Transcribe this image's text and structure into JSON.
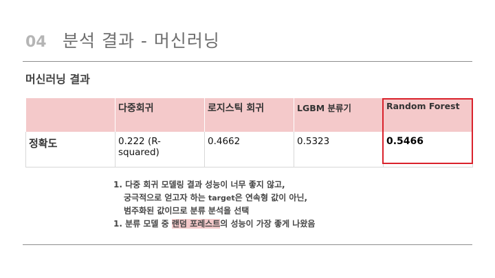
{
  "header": {
    "number": "04",
    "title": "분석 결과 - 머신러닝"
  },
  "section": {
    "title": "머신러닝 결과"
  },
  "table": {
    "columns": [
      "",
      "다중회귀",
      "로지스틱 회귀",
      "LGBM 분류기",
      "Random Forest"
    ],
    "rows": [
      {
        "label": "정확도",
        "values": [
          "0.222 (R-squared)",
          "0.4662",
          "0.5323",
          "0.5466"
        ]
      }
    ]
  },
  "notes": {
    "item1_line1": "1. 다중 회귀 모델링 결과 성능이 너무 좋지 않고,",
    "item1_line2a": "궁극적으로 얻고자 하는 ",
    "item1_line2b": "target",
    "item1_line2c": "은 연속형 값이 아닌,",
    "item1_line3": "범주화된 값이므로 분류 분석을 선택",
    "item2_prefix": "1. 분류 모델 중 ",
    "item2_highlight": "랜덤 포레스트",
    "item2_suffix": "의 성능이 가장 좋게 나왔음"
  },
  "colors": {
    "header_fill": "#f4c9ca",
    "highlight_border": "#d9202a",
    "title_gray": "#6e6e6e"
  }
}
